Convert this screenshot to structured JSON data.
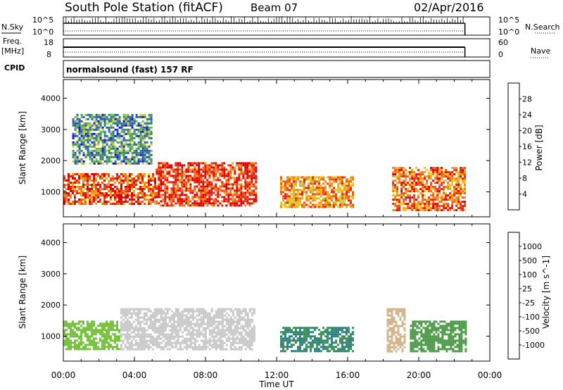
{
  "header": {
    "station": "South Pole Station (fitACF)",
    "beam": "Beam 07",
    "date": "02/Apr/2016"
  },
  "left_labels": {
    "nsky": "N.Sky",
    "freq": "Freq.",
    "freq_unit": "[MHz]",
    "cpid": "CPID"
  },
  "right_labels": {
    "nsearch": "N.Search",
    "nave": "Nave"
  },
  "nsky_ticks": {
    "top": "10^5",
    "bottom": "10^0"
  },
  "freq_ticks": {
    "top": "18",
    "bottom": "8"
  },
  "nsearch_ticks": {
    "top": "10^5",
    "bottom": "10^0"
  },
  "nave_ticks": {
    "top": "60",
    "bottom": "0"
  },
  "cpid_text": "normalsound (fast) 157 RF",
  "colors": {
    "power_scale": [
      "#1010e0",
      "#2850c0",
      "#2e7d8a",
      "#3f8f5a",
      "#72b84a",
      "#c8d040",
      "#f2c020",
      "#f0a020",
      "#f07d10",
      "#f05010",
      "#e81e10",
      "#e00000"
    ],
    "velocity_scale": [
      "#1a2ec8",
      "#2b5cb0",
      "#2f7f86",
      "#3d8f58",
      "#4c9a4a",
      "#76c23c",
      "#c8c8c8",
      "#d2b48c",
      "#f0a000",
      "#f07800",
      "#f04800",
      "#e01010"
    ]
  },
  "chart_data": [
    {
      "type": "heatmap",
      "name": "power_panel",
      "ylabel": "Slant Range [km]",
      "y_ticks": [
        "1000",
        "2000",
        "3000",
        "4000"
      ],
      "ylim": [
        200,
        4600
      ],
      "x_ticks": [
        "00:00",
        "04:00",
        "08:00",
        "12:00",
        "16:00",
        "20:00",
        "00:00"
      ],
      "xlim_hours": [
        0,
        24
      ],
      "colorbar_label": "Power [dB]",
      "colorbar_ticks": [
        "4",
        "8",
        "12",
        "16",
        "20",
        "24",
        "28"
      ],
      "colorbar_range": [
        0,
        30
      ],
      "regions": [
        {
          "t0": 0.0,
          "t1": 5.2,
          "r0": 600,
          "r1": 1600,
          "value": 24
        },
        {
          "t0": 5.2,
          "t1": 10.8,
          "r0": 550,
          "r1": 1950,
          "value": 26
        },
        {
          "t0": 12.2,
          "t1": 16.3,
          "r0": 500,
          "r1": 1500,
          "value": 20
        },
        {
          "t0": 18.5,
          "t1": 22.6,
          "r0": 400,
          "r1": 1800,
          "value": 22
        },
        {
          "t0": 0.5,
          "t1": 5.0,
          "r0": 1900,
          "r1": 3500,
          "value": 8
        }
      ]
    },
    {
      "type": "heatmap",
      "name": "velocity_panel",
      "ylabel": "Slant Range [km]",
      "y_ticks": [
        "1000",
        "2000",
        "3000",
        "4000"
      ],
      "ylim": [
        200,
        4600
      ],
      "x_ticks": [
        "00:00",
        "04:00",
        "08:00",
        "12:00",
        "16:00",
        "20:00",
        "00:00"
      ],
      "xlim_hours": [
        0,
        24
      ],
      "xlabel": "Time UT",
      "colorbar_label": "Velocity [m s^-1]",
      "colorbar_ticks": [
        "1000",
        "500",
        "100",
        "25",
        "-25",
        "-100",
        "-500",
        "-1000"
      ],
      "regions": [
        {
          "t0": 0.0,
          "t1": 3.2,
          "r0": 600,
          "r1": 1500,
          "value": 100
        },
        {
          "t0": 3.2,
          "t1": 10.8,
          "r0": 550,
          "r1": 1900,
          "value": -100
        },
        {
          "t0": 12.2,
          "t1": 16.3,
          "r0": 500,
          "r1": 1300,
          "value": 500
        },
        {
          "t0": 18.2,
          "t1": 19.2,
          "r0": 500,
          "r1": 1900,
          "value": -300
        },
        {
          "t0": 19.5,
          "t1": 22.6,
          "r0": 500,
          "r1": 1500,
          "value": 300
        }
      ]
    }
  ]
}
